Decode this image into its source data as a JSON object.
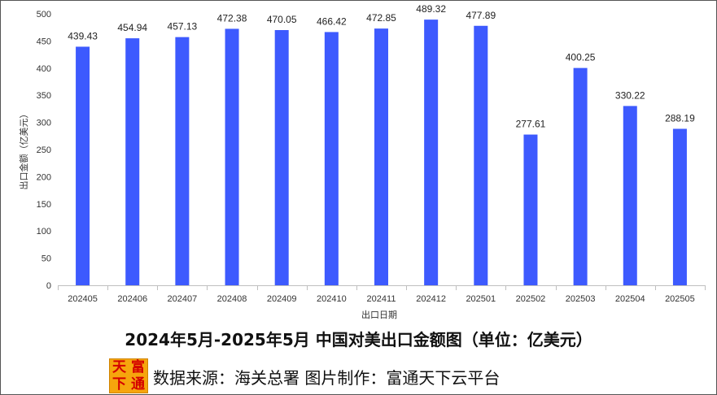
{
  "chart_data": {
    "type": "bar",
    "title": "2024年5月-2025年5月 中国对美出口金额图（单位：亿美元）",
    "xlabel": "出口日期",
    "ylabel": "出口金额（亿美元）",
    "ylim": [
      0,
      500
    ],
    "yticks": [
      0,
      50,
      100,
      150,
      200,
      250,
      300,
      350,
      400,
      450,
      500
    ],
    "categories": [
      "202405",
      "202406",
      "202407",
      "202408",
      "202409",
      "202410",
      "202411",
      "202412",
      "202501",
      "202502",
      "202503",
      "202504",
      "202505"
    ],
    "values": [
      439.43,
      454.94,
      457.13,
      472.38,
      470.05,
      466.42,
      472.85,
      489.32,
      477.89,
      277.61,
      400.25,
      330.22,
      288.19
    ],
    "value_labels": [
      "439.43",
      "454.94",
      "457.13",
      "472.38",
      "470.05",
      "466.42",
      "472.85",
      "489.32",
      "477.89",
      "277.61",
      "400.25",
      "330.22",
      "288.19"
    ],
    "bar_color": "#3d5afe",
    "grid": false,
    "legend": "none"
  },
  "footer": {
    "source_text": "数据来源：海关总署 图片制作：富通天下云平台",
    "logo_chars": [
      "天",
      "富",
      "下",
      "通"
    ]
  }
}
